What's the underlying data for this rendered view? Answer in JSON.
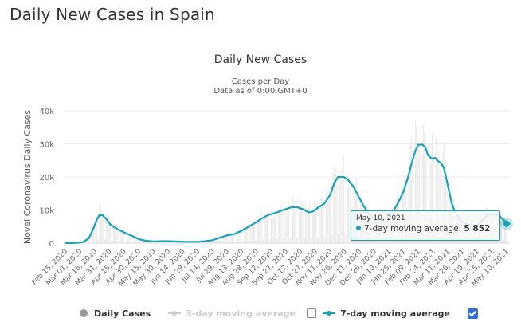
{
  "page": {
    "title": "Daily New Cases in Spain"
  },
  "chart_data": {
    "type": "line",
    "title": "Daily New Cases",
    "subtitle_lines": [
      "Cases per Day",
      "Data as of 0:00 GMT+0"
    ],
    "ylabel": "Novel Coronavirus Daily Cases",
    "xlabel": "",
    "ylim": [
      0,
      40000
    ],
    "yticks": [
      0,
      10000,
      20000,
      30000,
      40000
    ],
    "ytick_labels": [
      "0",
      "10k",
      "20k",
      "30k",
      "40k"
    ],
    "grid": true,
    "x_tick_labels": [
      "Feb 15, 2020",
      "Mar 01, 2020",
      "Mar 16, 2020",
      "Mar 31, 2020",
      "Apr 15, 2020",
      "Apr 30, 2020",
      "May 15, 2020",
      "May 30, 2020",
      "Jun 14, 2020",
      "Jun 29, 2020",
      "Jul 14, 2020",
      "Jul 29, 2020",
      "Aug 13, 2020",
      "Aug 28, 2020",
      "Sep 12, 2020",
      "Sep 27, 2020",
      "Oct 12, 2020",
      "Oct 27, 2020",
      "Nov 11, 2020",
      "Nov 26, 2020",
      "Dec 11, 2020",
      "Dec 26, 2020",
      "Jan 10, 2021",
      "Jan 25, 2021",
      "Feb 09, 2021",
      "Feb 24, 2021",
      "Mar 11, 2021",
      "Mar 26, 2021",
      "Apr 10, 2021",
      "Apr 25, 2021",
      "May 10, 2021"
    ],
    "x_days_range": [
      0,
      450
    ],
    "series": [
      {
        "name": "7-day moving average",
        "color": "#17a2b8",
        "visible": true,
        "points_day_value": [
          [
            0,
            0
          ],
          [
            10,
            50
          ],
          [
            18,
            300
          ],
          [
            24,
            1500
          ],
          [
            28,
            4000
          ],
          [
            32,
            7000
          ],
          [
            35,
            8600
          ],
          [
            38,
            8400
          ],
          [
            42,
            7200
          ],
          [
            46,
            5600
          ],
          [
            52,
            4400
          ],
          [
            60,
            3200
          ],
          [
            68,
            2200
          ],
          [
            75,
            1200
          ],
          [
            82,
            700
          ],
          [
            90,
            500
          ],
          [
            100,
            600
          ],
          [
            112,
            500
          ],
          [
            122,
            400
          ],
          [
            135,
            400
          ],
          [
            143,
            600
          ],
          [
            150,
            900
          ],
          [
            156,
            1500
          ],
          [
            164,
            2300
          ],
          [
            172,
            2700
          ],
          [
            178,
            3500
          ],
          [
            186,
            4800
          ],
          [
            194,
            6200
          ],
          [
            200,
            7400
          ],
          [
            207,
            8500
          ],
          [
            214,
            9100
          ],
          [
            222,
            10000
          ],
          [
            230,
            10800
          ],
          [
            236,
            10900
          ],
          [
            242,
            10300
          ],
          [
            248,
            9300
          ],
          [
            252,
            9500
          ],
          [
            258,
            10800
          ],
          [
            264,
            11900
          ],
          [
            270,
            14500
          ],
          [
            274,
            18000
          ],
          [
            278,
            20000
          ],
          [
            284,
            20000
          ],
          [
            288,
            19200
          ],
          [
            294,
            17000
          ],
          [
            300,
            13500
          ],
          [
            304,
            11300
          ],
          [
            308,
            9500
          ],
          [
            312,
            8000
          ],
          [
            318,
            7300
          ],
          [
            322,
            7000
          ],
          [
            328,
            7600
          ],
          [
            334,
            9500
          ],
          [
            339,
            12000
          ],
          [
            344,
            15000
          ],
          [
            349,
            19500
          ],
          [
            353,
            24000
          ],
          [
            357,
            28000
          ],
          [
            360,
            29700
          ],
          [
            364,
            29800
          ],
          [
            367,
            29000
          ],
          [
            370,
            26500
          ],
          [
            374,
            25500
          ],
          [
            377,
            25800
          ],
          [
            380,
            24800
          ],
          [
            383,
            24200
          ],
          [
            386,
            22800
          ],
          [
            390,
            17500
          ],
          [
            394,
            12000
          ],
          [
            398,
            9000
          ],
          [
            402,
            7200
          ],
          [
            407,
            6000
          ],
          [
            414,
            5100
          ],
          [
            420,
            5200
          ],
          [
            425,
            6800
          ],
          [
            430,
            8500
          ],
          [
            436,
            8800
          ],
          [
            442,
            8300
          ],
          [
            447,
            7000
          ],
          [
            450,
            5852
          ]
        ]
      },
      {
        "name": "3-day moving average",
        "visible": false
      },
      {
        "name": "Daily Cases",
        "visible": true,
        "color": "#e5e5e5"
      }
    ],
    "tooltip": {
      "date": "May 10, 2021",
      "series": "7-day moving average",
      "label": "7-day moving average: ",
      "value": "5 852",
      "value_num": 5852
    },
    "legend": {
      "position": "bottom",
      "items": [
        {
          "label": "Daily Cases",
          "active": true,
          "icon": "dot-icon",
          "color": "#999999"
        },
        {
          "label": "3-day moving average",
          "active": false,
          "icon": "line-marker-icon",
          "color": "#cccccc",
          "checkbox_checked": false
        },
        {
          "label": "7-day moving average",
          "active": true,
          "icon": "line-marker-icon",
          "color": "#17a2b8",
          "checkbox_checked": true
        }
      ]
    }
  }
}
